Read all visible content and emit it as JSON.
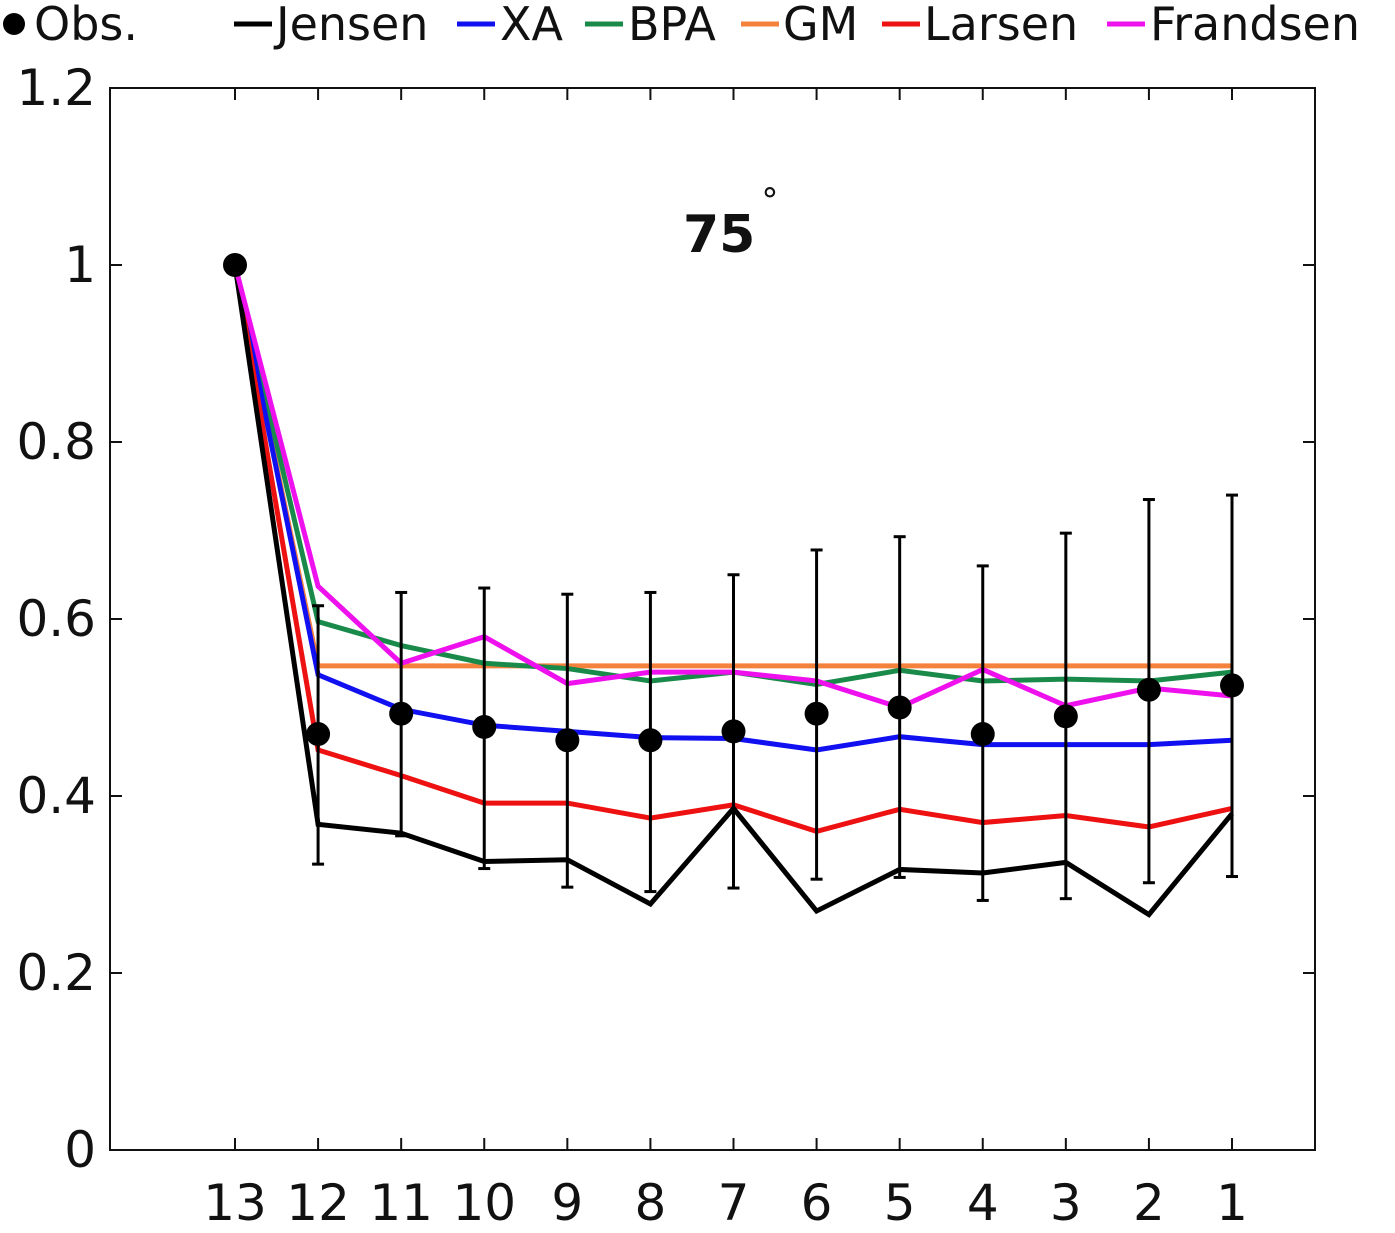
{
  "chart_data": {
    "type": "line",
    "annotation": "75",
    "annotation_superscript": "°",
    "categories": [
      "13",
      "12",
      "11",
      "10",
      "9",
      "8",
      "7",
      "6",
      "5",
      "4",
      "3",
      "2",
      "1"
    ],
    "xlabel": "",
    "ylabel": "",
    "ylim": [
      0,
      1.2
    ],
    "yticks": [
      "0",
      "0.2",
      "0.4",
      "0.6",
      "0.8",
      "1",
      "1.2"
    ],
    "grid": false,
    "legend_position": "top",
    "observed": {
      "name": "Obs.",
      "color": "#000000",
      "values": [
        1.0,
        0.47,
        0.493,
        0.478,
        0.463,
        0.463,
        0.473,
        0.493,
        0.5,
        0.47,
        0.49,
        0.52,
        0.525
      ],
      "error_upper": [
        null,
        0.615,
        0.63,
        0.635,
        0.628,
        0.63,
        0.65,
        0.678,
        0.693,
        0.66,
        0.697,
        0.735,
        0.74
      ],
      "error_lower": [
        null,
        0.323,
        0.355,
        0.318,
        0.297,
        0.292,
        0.296,
        0.306,
        0.308,
        0.282,
        0.284,
        0.302,
        0.309
      ]
    },
    "series": [
      {
        "name": "Jensen",
        "color": "#000000",
        "values": [
          1.0,
          0.368,
          0.358,
          0.326,
          0.328,
          0.278,
          0.386,
          0.27,
          0.317,
          0.313,
          0.325,
          0.266,
          0.38
        ]
      },
      {
        "name": "XA",
        "color": "#1010f0",
        "values": [
          1.0,
          0.537,
          0.498,
          0.48,
          0.473,
          0.466,
          0.465,
          0.452,
          0.467,
          0.458,
          0.458,
          0.458,
          0.463
        ]
      },
      {
        "name": "BPA",
        "color": "#1a8a4a",
        "values": [
          1.0,
          0.597,
          0.57,
          0.55,
          0.544,
          0.53,
          0.54,
          0.526,
          0.542,
          0.53,
          0.532,
          0.53,
          0.54
        ]
      },
      {
        "name": "GM",
        "color": "#f5823c",
        "values": [
          1.0,
          0.547,
          0.547,
          0.547,
          0.547,
          0.547,
          0.547,
          0.547,
          0.547,
          0.547,
          0.547,
          0.547,
          0.547
        ]
      },
      {
        "name": "Larsen",
        "color": "#ee1111",
        "values": [
          1.0,
          0.452,
          0.423,
          0.392,
          0.392,
          0.375,
          0.39,
          0.36,
          0.385,
          0.37,
          0.378,
          0.365,
          0.386
        ]
      },
      {
        "name": "Frandsen",
        "color": "#ee11ee",
        "values": [
          1.0,
          0.637,
          0.55,
          0.58,
          0.527,
          0.54,
          0.54,
          0.53,
          0.5,
          0.543,
          0.502,
          0.522,
          0.513
        ]
      }
    ]
  }
}
